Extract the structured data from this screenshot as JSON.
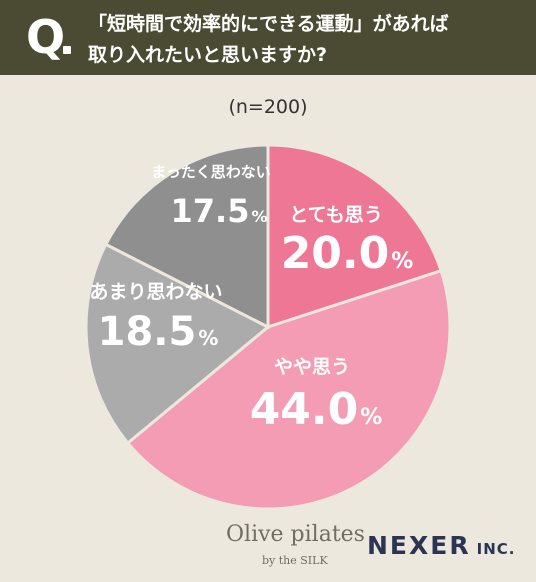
{
  "header": {
    "q_mark": "Q",
    "question_line1": "「短時間で効率的にできる運動」があれば",
    "question_line2": "取り入れたいと思いますか?"
  },
  "sample": "(n=200)",
  "chart_data": {
    "type": "pie",
    "start_angle_deg": 0,
    "direction": "clockwise",
    "unit": "%",
    "slices": [
      {
        "label": "とても思う",
        "value": 20.0,
        "display": "20.0",
        "color": "#ee7796"
      },
      {
        "label": "やや思う",
        "value": 44.0,
        "display": "44.0",
        "color": "#f39cb3"
      },
      {
        "label": "あまり思わない",
        "value": 18.5,
        "display": "18.5",
        "color": "#ababab"
      },
      {
        "label": "まったく思わない",
        "value": 17.5,
        "display": "17.5",
        "color": "#8f8f8f"
      }
    ]
  },
  "logos": {
    "olive": "Olive pilates",
    "olive_sub": "by the SILK",
    "nexer": "NEXER",
    "nexer_inc": "INC."
  }
}
